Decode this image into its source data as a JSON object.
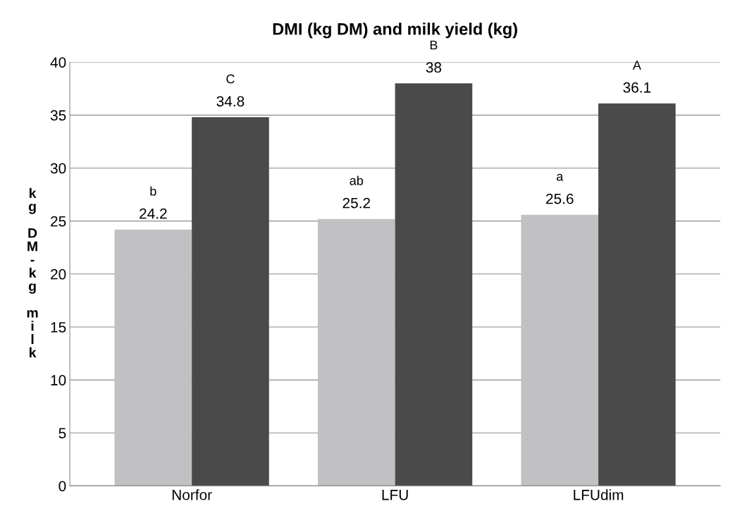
{
  "chart_data": {
    "type": "bar",
    "title": "DMI (kg DM) and milk yield (kg)",
    "ylabel": "kg DM-kg milk",
    "categories": [
      "Norfor",
      "LFU",
      "LFUdim"
    ],
    "series": [
      {
        "color": "#c1c1c3",
        "values": [
          24.2,
          25.2,
          25.6
        ]
      },
      {
        "color": "#4a4a4a",
        "values": [
          34.8,
          38,
          36.1
        ]
      }
    ],
    "ylim": [
      0,
      40
    ],
    "yticks": [
      0,
      5,
      10,
      15,
      20,
      25,
      30,
      35,
      40
    ],
    "grid": "y",
    "legend": false,
    "data_labels": true,
    "annotations": [
      "b",
      "C",
      "ab",
      "B",
      "a",
      "A"
    ]
  }
}
